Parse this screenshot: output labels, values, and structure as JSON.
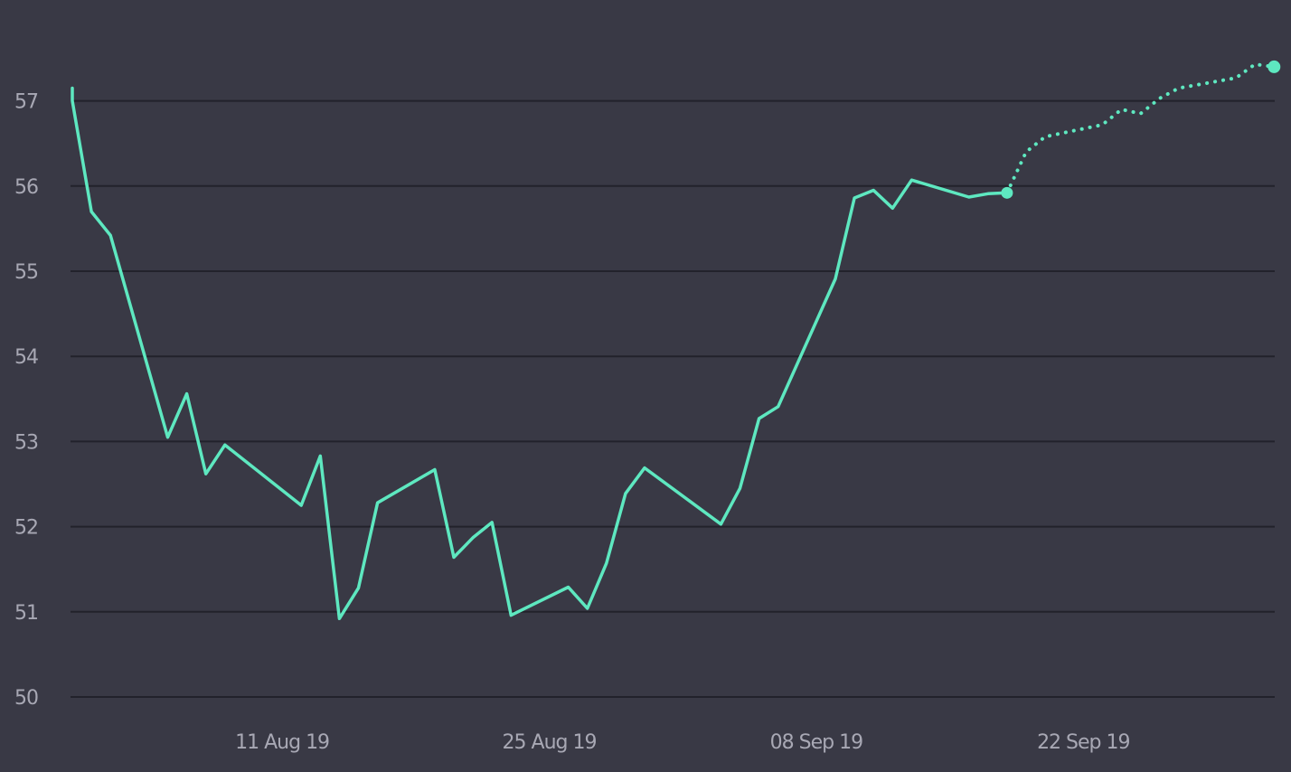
{
  "chart_data": {
    "type": "line",
    "title": "",
    "xlabel": "",
    "ylabel": "",
    "ylim": [
      50,
      57.7
    ],
    "xlim": [
      "2019-07-31",
      "2019-10-03"
    ],
    "grid": true,
    "y_ticks": [
      "50",
      "51",
      "52",
      "53",
      "54",
      "55",
      "56",
      "57"
    ],
    "x_ticks": [
      {
        "date": "2019-08-11",
        "label": "11 Aug 19"
      },
      {
        "date": "2019-08-25",
        "label": "25 Aug 19"
      },
      {
        "date": "2019-09-08",
        "label": "08 Sep 19"
      },
      {
        "date": "2019-09-22",
        "label": "22 Sep 19"
      }
    ],
    "series": [
      {
        "style": "solid",
        "color": "#5ee8c0",
        "points": [
          {
            "x": "2019-07-31",
            "y": 57.15
          },
          {
            "x": "2019-07-31",
            "y": 57.0
          },
          {
            "x": "2019-08-01",
            "y": 55.7
          },
          {
            "x": "2019-08-02",
            "y": 55.42
          },
          {
            "x": "2019-08-05",
            "y": 53.05
          },
          {
            "x": "2019-08-06",
            "y": 53.56
          },
          {
            "x": "2019-08-07",
            "y": 52.62
          },
          {
            "x": "2019-08-08",
            "y": 52.96
          },
          {
            "x": "2019-08-12",
            "y": 52.25
          },
          {
            "x": "2019-08-13",
            "y": 52.83
          },
          {
            "x": "2019-08-14",
            "y": 50.92
          },
          {
            "x": "2019-08-15",
            "y": 51.28
          },
          {
            "x": "2019-08-16",
            "y": 52.28
          },
          {
            "x": "2019-08-19",
            "y": 52.67
          },
          {
            "x": "2019-08-20",
            "y": 51.64
          },
          {
            "x": "2019-08-21",
            "y": 51.87
          },
          {
            "x": "2019-08-22",
            "y": 52.05
          },
          {
            "x": "2019-08-23",
            "y": 50.96
          },
          {
            "x": "2019-08-26",
            "y": 51.29
          },
          {
            "x": "2019-08-27",
            "y": 51.04
          },
          {
            "x": "2019-08-28",
            "y": 51.57
          },
          {
            "x": "2019-08-29",
            "y": 52.39
          },
          {
            "x": "2019-08-30",
            "y": 52.69
          },
          {
            "x": "2019-09-03",
            "y": 52.03
          },
          {
            "x": "2019-09-04",
            "y": 52.45
          },
          {
            "x": "2019-09-05",
            "y": 53.27
          },
          {
            "x": "2019-09-06",
            "y": 53.41
          },
          {
            "x": "2019-09-09",
            "y": 54.91
          },
          {
            "x": "2019-09-10",
            "y": 55.86
          },
          {
            "x": "2019-09-11",
            "y": 55.95
          },
          {
            "x": "2019-09-12",
            "y": 55.74
          },
          {
            "x": "2019-09-13",
            "y": 56.07
          },
          {
            "x": "2019-09-16",
            "y": 55.87
          },
          {
            "x": "2019-09-17",
            "y": 55.91
          },
          {
            "x": "2019-09-18",
            "y": 55.92
          }
        ]
      },
      {
        "style": "dotted",
        "color": "#5ee8c0",
        "points": [
          {
            "x": "2019-09-18",
            "y": 55.92
          },
          {
            "x": "2019-09-19",
            "y": 56.4
          },
          {
            "x": "2019-09-20",
            "y": 56.58
          },
          {
            "x": "2019-09-23",
            "y": 56.72
          },
          {
            "x": "2019-09-24",
            "y": 56.9
          },
          {
            "x": "2019-09-25",
            "y": 56.85
          },
          {
            "x": "2019-09-26",
            "y": 57.03
          },
          {
            "x": "2019-09-27",
            "y": 57.15
          },
          {
            "x": "2019-09-30",
            "y": 57.27
          },
          {
            "x": "2019-10-01",
            "y": 57.43
          },
          {
            "x": "2019-10-02",
            "y": 57.4
          }
        ]
      }
    ]
  }
}
